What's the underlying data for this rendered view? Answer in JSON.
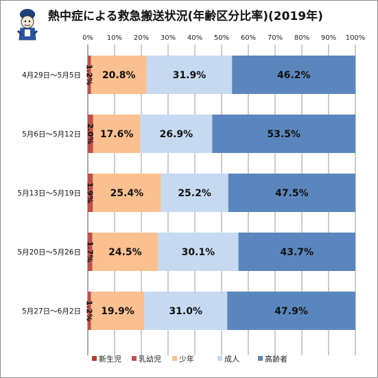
{
  "chart_data": {
    "type": "bar",
    "orientation": "horizontal",
    "stacked": "percent",
    "title": "熱中症による救急搬送状況(年齢区分比率)(2019年)",
    "xlim": [
      0,
      100
    ],
    "x_ticks": [
      "0%",
      "10%",
      "20%",
      "30%",
      "40%",
      "50%",
      "60%",
      "70%",
      "80%",
      "90%",
      "100%"
    ],
    "categories": [
      "4月29日～5月5日",
      "5月6日～5月12日",
      "5月13日～5月19日",
      "5月20日～5月26日",
      "5月27日～6月2日"
    ],
    "series": [
      {
        "name": "新生児",
        "color": "#c0504d",
        "values": [
          0.0,
          0.0,
          0.0,
          0.0,
          0.0
        ],
        "labels": [
          "",
          "",
          "",
          "",
          ""
        ]
      },
      {
        "name": "乳幼児",
        "color": "#c0504d",
        "values": [
          1.2,
          2.0,
          1.9,
          1.7,
          1.2
        ],
        "labels": [
          "1.2%",
          "2.0%",
          "1.9%",
          "1.7%",
          "1.2%"
        ]
      },
      {
        "name": "少年",
        "color": "#fac090",
        "values": [
          20.8,
          17.6,
          25.4,
          24.5,
          19.9
        ],
        "labels": [
          "20.8%",
          "17.6%",
          "25.4%",
          "24.5%",
          "19.9%"
        ]
      },
      {
        "name": "成人",
        "color": "#c6d9f1",
        "values": [
          31.9,
          26.9,
          25.2,
          30.1,
          31.0
        ],
        "labels": [
          "31.9%",
          "26.9%",
          "25.2%",
          "30.1%",
          "31.0%"
        ]
      },
      {
        "name": "高齢者",
        "color": "#5b86bd",
        "values": [
          46.2,
          53.5,
          47.5,
          43.7,
          47.9
        ],
        "labels": [
          "46.2%",
          "53.5%",
          "47.5%",
          "43.7%",
          "47.9%"
        ]
      }
    ],
    "legend_colors": [
      "#b83b2c",
      "#c0504d",
      "#fac090",
      "#c6d9f1",
      "#5b86bd"
    ],
    "legend_position": "bottom",
    "grid": true
  },
  "logo": {
    "icon": "mascot-logo-icon"
  }
}
